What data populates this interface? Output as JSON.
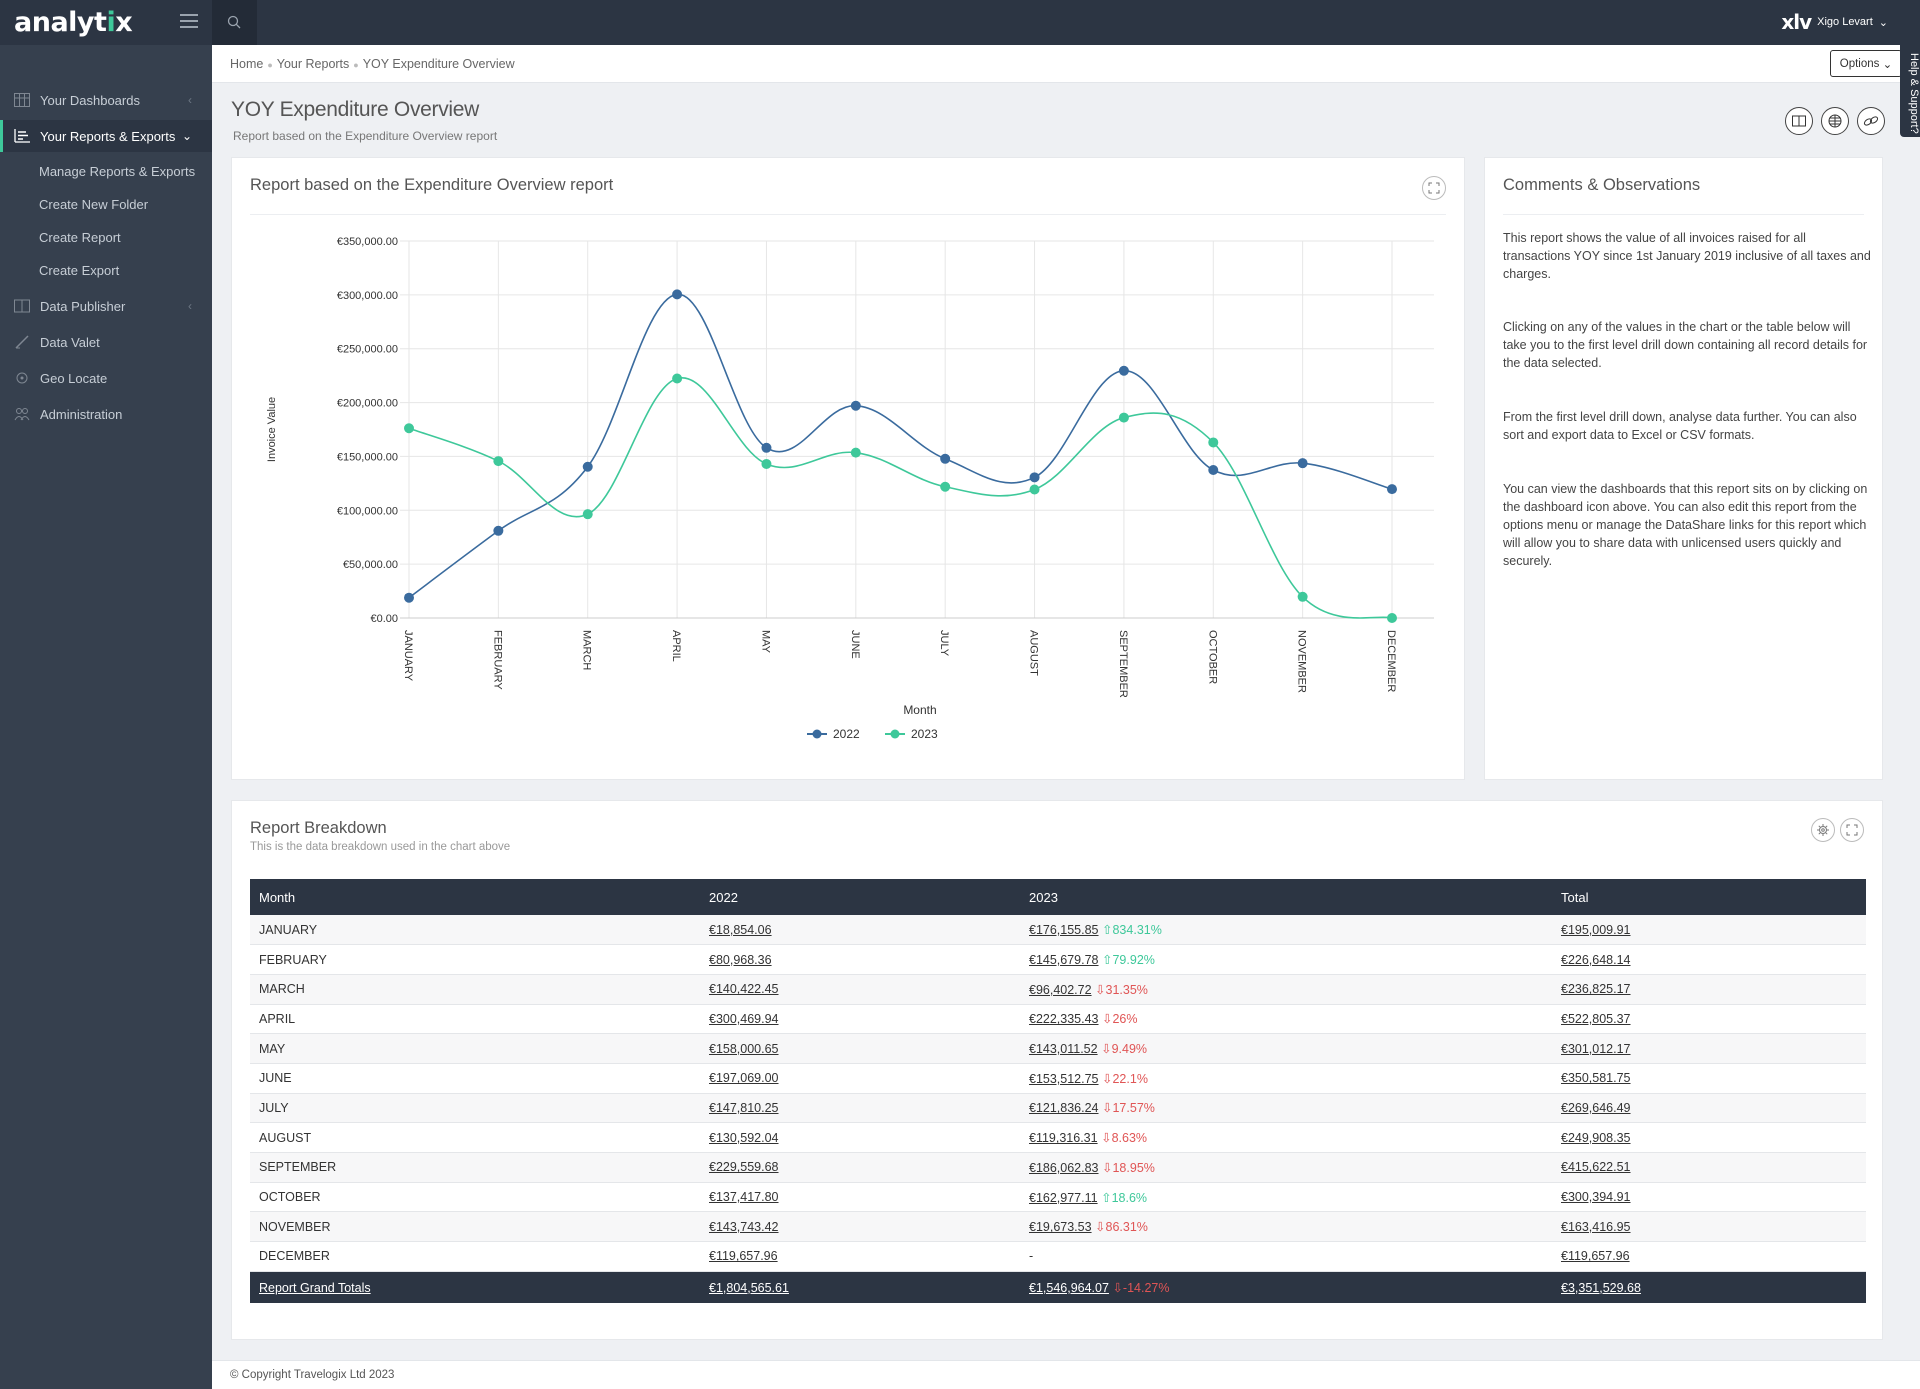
{
  "app": {
    "logo_main": "analyt",
    "logo_accent": "i",
    "logo_end": "x"
  },
  "user": {
    "badge": "xlv",
    "name": "Xigo Levart"
  },
  "sidebar": {
    "items": [
      {
        "label": "Your Dashboards",
        "icon": "grid-icon"
      },
      {
        "label": "Your Reports & Exports",
        "icon": "chart-icon"
      },
      {
        "label": "Data Publisher",
        "icon": "book-icon"
      },
      {
        "label": "Data Valet",
        "icon": "pen-icon"
      },
      {
        "label": "Geo Locate",
        "icon": "locate-icon"
      },
      {
        "label": "Administration",
        "icon": "users-icon"
      }
    ],
    "sub_items": [
      "Manage Reports & Exports",
      "Create New Folder",
      "Create Report",
      "Create Export"
    ]
  },
  "breadcrumb": {
    "home": "Home",
    "reports": "Your Reports",
    "current": "YOY Expenditure Overview"
  },
  "options_label": "Options",
  "help_label": "Help & Support?",
  "page": {
    "title": "YOY Expenditure Overview",
    "subtitle": "Report based on the Expenditure Overview report"
  },
  "chart_card": {
    "title": "Report based on the Expenditure Overview report"
  },
  "comments": {
    "title": "Comments & Observations",
    "paragraphs": [
      "This report shows the value of all invoices raised for all transactions YOY since 1st January 2019 inclusive of all taxes and charges.",
      "Clicking on any of the values in the chart or the table below will take you to the first level drill down containing all record details for the data selected.",
      "From the first level drill down, analyse data further. You can also sort and export data to Excel or CSV formats.",
      "You can view the dashboards that this report sits on by clicking on the dashboard icon above. You can also edit this report from the options menu or manage the DataShare links for this report which will allow you to share data with unlicensed users quickly and securely."
    ]
  },
  "chart_data": {
    "type": "line",
    "xlabel": "Month",
    "ylabel": "Invoice Value",
    "ylim": [
      0,
      350000
    ],
    "y_ticks": [
      "€0.00",
      "€50,000.00",
      "€100,000.00",
      "€150,000.00",
      "€200,000.00",
      "€250,000.00",
      "€300,000.00",
      "€350,000.00"
    ],
    "categories": [
      "JANUARY",
      "FEBRUARY",
      "MARCH",
      "APRIL",
      "MAY",
      "JUNE",
      "JULY",
      "AUGUST",
      "SEPTEMBER",
      "OCTOBER",
      "NOVEMBER",
      "DECEMBER"
    ],
    "series": [
      {
        "name": "2022",
        "color": "#3a6b9e",
        "values": [
          18854.06,
          80968.36,
          140422.45,
          300469.94,
          158000.65,
          197069.0,
          147810.25,
          130592.04,
          229559.68,
          137417.8,
          143743.42,
          119657.96
        ]
      },
      {
        "name": "2023",
        "color": "#3ec89a",
        "values": [
          176155.85,
          145679.78,
          96402.72,
          222335.43,
          143011.52,
          153512.75,
          121836.24,
          119316.31,
          186062.83,
          162977.11,
          19673.53,
          0
        ]
      }
    ],
    "legend_position": "bottom-center",
    "grid": true
  },
  "breakdown": {
    "title": "Report Breakdown",
    "subtitle": "This is the data breakdown used in the chart above",
    "headers": [
      "Month",
      "2022",
      "2023",
      "Total"
    ],
    "rows": [
      {
        "month": "JANUARY",
        "v2022": "€18,854.06",
        "v2023": "€176,155.85",
        "change": "834.31%",
        "dir": "up",
        "total": "€195,009.91"
      },
      {
        "month": "FEBRUARY",
        "v2022": "€80,968.36",
        "v2023": "€145,679.78",
        "change": "79.92%",
        "dir": "up",
        "total": "€226,648.14"
      },
      {
        "month": "MARCH",
        "v2022": "€140,422.45",
        "v2023": "€96,402.72",
        "change": "31.35%",
        "dir": "down",
        "total": "€236,825.17"
      },
      {
        "month": "APRIL",
        "v2022": "€300,469.94",
        "v2023": "€222,335.43",
        "change": "26%",
        "dir": "down",
        "total": "€522,805.37"
      },
      {
        "month": "MAY",
        "v2022": "€158,000.65",
        "v2023": "€143,011.52",
        "change": "9.49%",
        "dir": "down",
        "total": "€301,012.17"
      },
      {
        "month": "JUNE",
        "v2022": "€197,069.00",
        "v2023": "€153,512.75",
        "change": "22.1%",
        "dir": "down",
        "total": "€350,581.75"
      },
      {
        "month": "JULY",
        "v2022": "€147,810.25",
        "v2023": "€121,836.24",
        "change": "17.57%",
        "dir": "down",
        "total": "€269,646.49"
      },
      {
        "month": "AUGUST",
        "v2022": "€130,592.04",
        "v2023": "€119,316.31",
        "change": "8.63%",
        "dir": "down",
        "total": "€249,908.35"
      },
      {
        "month": "SEPTEMBER",
        "v2022": "€229,559.68",
        "v2023": "€186,062.83",
        "change": "18.95%",
        "dir": "down",
        "total": "€415,622.51"
      },
      {
        "month": "OCTOBER",
        "v2022": "€137,417.80",
        "v2023": "€162,977.11",
        "change": "18.6%",
        "dir": "up",
        "total": "€300,394.91"
      },
      {
        "month": "NOVEMBER",
        "v2022": "€143,743.42",
        "v2023": "€19,673.53",
        "change": "86.31%",
        "dir": "down",
        "total": "€163,416.95"
      },
      {
        "month": "DECEMBER",
        "v2022": "€119,657.96",
        "v2023": "-",
        "change": "",
        "dir": "",
        "total": "€119,657.96"
      }
    ],
    "totals": {
      "label": "Report Grand Totals",
      "v2022": "€1,804,565.61",
      "v2023": "€1,546,964.07",
      "change": "-14.27%",
      "dir": "down",
      "total": "€3,351,529.68"
    }
  },
  "footer": "© Copyright Travelogix Ltd 2023"
}
